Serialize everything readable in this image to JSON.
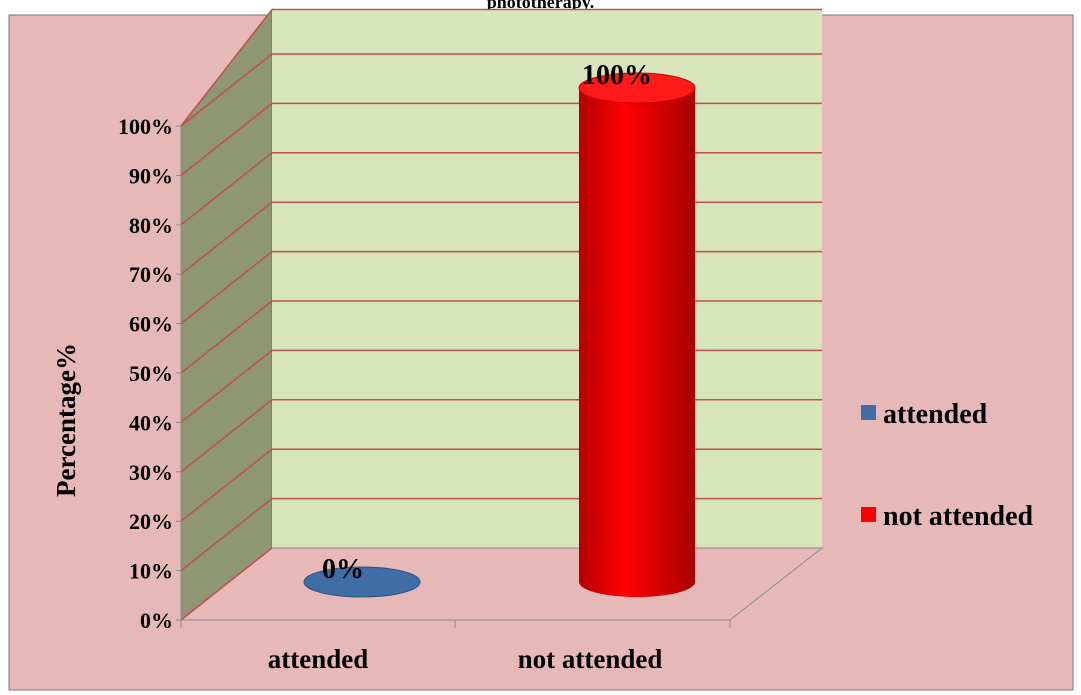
{
  "chart_data": {
    "type": "bar",
    "title": "phototherapy.",
    "categories": [
      "attended",
      "not attended"
    ],
    "series": [
      {
        "name": "attended",
        "values": [
          0,
          null
        ],
        "color": "#3f6ea6"
      },
      {
        "name": "not attended",
        "values": [
          null,
          100
        ],
        "color": "#ff0000"
      }
    ],
    "data_labels": [
      "0%",
      "100%"
    ],
    "ylabel": "Percentage%",
    "xlabel": "",
    "ylim": [
      0,
      100
    ],
    "yticks": [
      "0%",
      "10%",
      "20%",
      "30%",
      "40%",
      "50%",
      "60%",
      "70%",
      "80%",
      "90%",
      "100%"
    ],
    "grid": true,
    "legend_position": "right",
    "style": "3d-cylinder",
    "colors": {
      "background": "#e6b9b8",
      "back_wall": "#d8e4bc",
      "side_wall": "#8e9673",
      "floor": "#e6b9b8",
      "gridline": "#c0504d"
    }
  }
}
